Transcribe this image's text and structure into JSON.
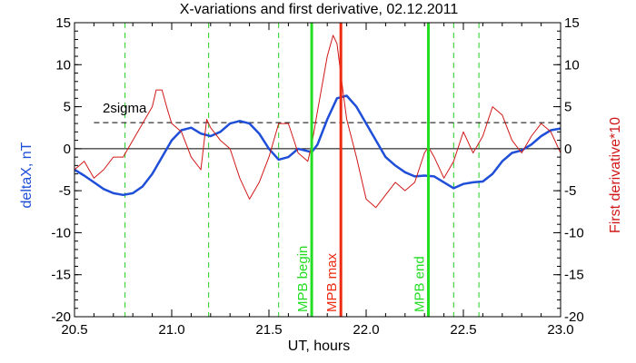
{
  "chart_data": {
    "type": "line",
    "title": "X-variations and first derivative, 02.12.2011",
    "xlabel": "UT, hours",
    "ylabel_left": "deltaX, nT",
    "ylabel_right": "First derivative*10",
    "xlim": [
      20.5,
      23.0
    ],
    "ylim": [
      -20,
      15
    ],
    "xticks": [
      "20.5",
      "21.0",
      "21.5",
      "22.0",
      "22.5",
      "23.0"
    ],
    "yticks": [
      "-20",
      "-15",
      "-10",
      "-5",
      "0",
      "5",
      "10",
      "15"
    ],
    "colors": {
      "deltaX": "#1f4fd8",
      "derivative": "#d01818",
      "mpb_markers": "#22dd22",
      "mpb_max_marker": "#ee2a10",
      "green_dashed": "#22cc22",
      "axes": "#000000"
    },
    "sigma_label": "2sigma",
    "sigma_level": 3.1,
    "zero_level": 0,
    "green_dashed_lines_x": [
      20.76,
      21.19,
      21.55,
      22.45,
      22.58
    ],
    "markers": [
      {
        "x": 21.72,
        "label": "MPB begin",
        "color": "#22dd22"
      },
      {
        "x": 21.87,
        "label": "MPB max",
        "color": "#ee2a10"
      },
      {
        "x": 22.32,
        "label": "MPB end",
        "color": "#22dd22"
      }
    ],
    "series": [
      {
        "key": "deltaX",
        "color": "#1f4fd8",
        "x": [
          20.5,
          20.55,
          20.6,
          20.65,
          20.7,
          20.75,
          20.8,
          20.85,
          20.9,
          20.95,
          21.0,
          21.05,
          21.1,
          21.15,
          21.2,
          21.25,
          21.3,
          21.35,
          21.4,
          21.45,
          21.5,
          21.55,
          21.6,
          21.65,
          21.7,
          21.72,
          21.75,
          21.8,
          21.85,
          21.9,
          21.95,
          22.0,
          22.05,
          22.1,
          22.15,
          22.2,
          22.25,
          22.3,
          22.35,
          22.4,
          22.45,
          22.5,
          22.55,
          22.6,
          22.65,
          22.7,
          22.75,
          22.8,
          22.85,
          22.9,
          22.95,
          23.0
        ],
        "y": [
          -2.5,
          -3.2,
          -4.0,
          -4.8,
          -5.3,
          -5.5,
          -5.3,
          -4.5,
          -3.0,
          -1.0,
          1.0,
          2.2,
          2.5,
          1.8,
          1.5,
          2.0,
          3.0,
          3.3,
          3.0,
          1.8,
          0.0,
          -1.3,
          -1.0,
          0.0,
          -0.3,
          -0.4,
          0.5,
          3.5,
          6.0,
          6.3,
          5.0,
          3.0,
          1.0,
          -1.0,
          -2.0,
          -2.8,
          -3.3,
          -3.2,
          -3.3,
          -4.0,
          -4.7,
          -4.2,
          -4.0,
          -3.9,
          -3.0,
          -1.5,
          -0.5,
          -0.2,
          0.5,
          1.5,
          2.2,
          2.4
        ]
      },
      {
        "key": "derivative",
        "color": "#d01818",
        "x": [
          20.5,
          20.55,
          20.6,
          20.65,
          20.7,
          20.75,
          20.8,
          20.85,
          20.9,
          20.92,
          20.95,
          20.98,
          21.0,
          21.05,
          21.1,
          21.15,
          21.18,
          21.2,
          21.25,
          21.3,
          21.35,
          21.4,
          21.45,
          21.5,
          21.55,
          21.6,
          21.65,
          21.7,
          21.72,
          21.75,
          21.8,
          21.83,
          21.85,
          21.88,
          21.9,
          21.95,
          22.0,
          22.05,
          22.1,
          22.15,
          22.2,
          22.25,
          22.3,
          22.32,
          22.35,
          22.4,
          22.45,
          22.5,
          22.55,
          22.6,
          22.65,
          22.7,
          22.75,
          22.8,
          22.85,
          22.9,
          22.95,
          23.0
        ],
        "y": [
          -2.5,
          -1.5,
          -3.5,
          -2.5,
          -1.0,
          -1.0,
          1.0,
          3.0,
          5.0,
          7.0,
          7.0,
          4.5,
          3.0,
          2.0,
          -1.0,
          -2.5,
          3.5,
          2.5,
          1.0,
          0.0,
          -3.5,
          -6.0,
          -4.0,
          -1.0,
          3.0,
          3.0,
          -0.5,
          -1.5,
          0.5,
          4.5,
          11.0,
          13.5,
          12.5,
          7.0,
          3.5,
          -1.0,
          -6.0,
          -7.0,
          -5.5,
          -4.0,
          -5.0,
          -4.0,
          -0.5,
          0.2,
          -1.0,
          -3.5,
          -1.5,
          2.0,
          -0.5,
          1.5,
          5.0,
          4.0,
          1.0,
          -0.5,
          1.5,
          3.0,
          2.0,
          -0.5
        ]
      }
    ]
  }
}
